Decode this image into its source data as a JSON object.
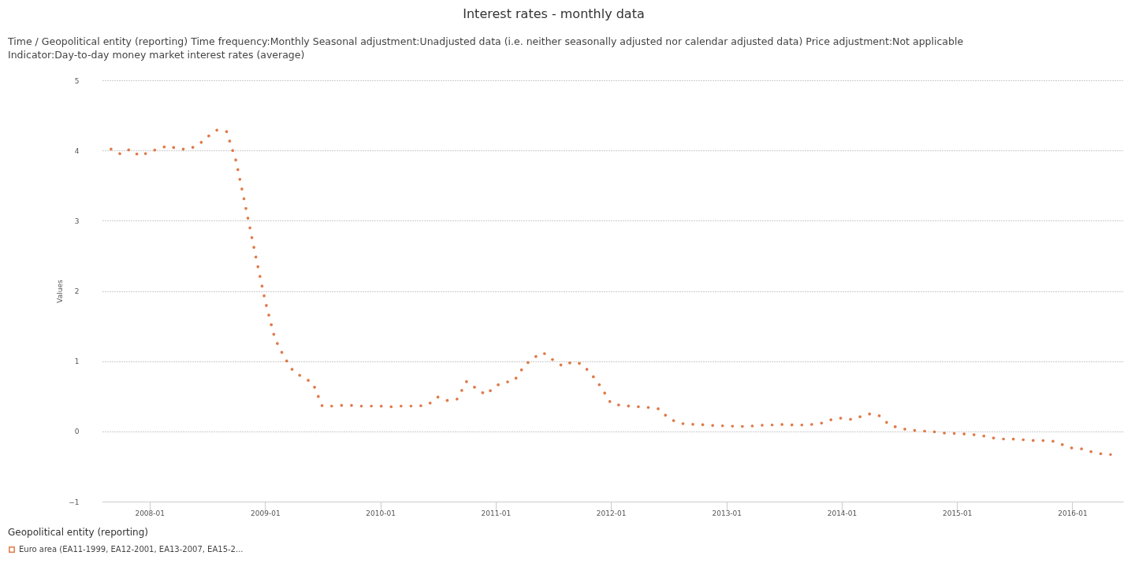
{
  "chart_data": {
    "type": "line",
    "title": "Interest rates - monthly data",
    "subtitle": "Time / Geopolitical entity (reporting)  Time frequency:Monthly  Seasonal adjustment:Unadjusted data (i.e. neither seasonally adjusted nor calendar adjusted data)  Price adjustment:Not applicable  Indicator:Day-to-day money market interest rates (average)",
    "ylabel": "Values",
    "legend_title": "Geopolitical entity (reporting)",
    "x": [
      "2007-09",
      "2007-10",
      "2007-11",
      "2007-12",
      "2008-01",
      "2008-02",
      "2008-03",
      "2008-04",
      "2008-05",
      "2008-06",
      "2008-07",
      "2008-08",
      "2008-09",
      "2008-10",
      "2008-11",
      "2008-12",
      "2009-01",
      "2009-02",
      "2009-03",
      "2009-04",
      "2009-05",
      "2009-06",
      "2009-07",
      "2009-08",
      "2009-09",
      "2009-10",
      "2009-11",
      "2009-12",
      "2010-01",
      "2010-02",
      "2010-03",
      "2010-04",
      "2010-05",
      "2010-06",
      "2010-07",
      "2010-08",
      "2010-09",
      "2010-10",
      "2010-11",
      "2010-12",
      "2011-01",
      "2011-02",
      "2011-03",
      "2011-04",
      "2011-05",
      "2011-06",
      "2011-07",
      "2011-08",
      "2011-09",
      "2011-10",
      "2011-11",
      "2011-12",
      "2012-01",
      "2012-02",
      "2012-03",
      "2012-04",
      "2012-05",
      "2012-06",
      "2012-07",
      "2012-08",
      "2012-09",
      "2012-10",
      "2012-11",
      "2012-12",
      "2013-01",
      "2013-02",
      "2013-03",
      "2013-04",
      "2013-05",
      "2013-06",
      "2013-07",
      "2013-08",
      "2013-09",
      "2013-10",
      "2013-11",
      "2013-12",
      "2014-01",
      "2014-02",
      "2014-03",
      "2014-04",
      "2014-05",
      "2014-06",
      "2014-07",
      "2014-08",
      "2014-09",
      "2014-10",
      "2014-11",
      "2014-12",
      "2015-01",
      "2015-02",
      "2015-03",
      "2015-04",
      "2015-05",
      "2015-06",
      "2015-07",
      "2015-08",
      "2015-09",
      "2015-10",
      "2015-11",
      "2015-12",
      "2016-01",
      "2016-02",
      "2016-03",
      "2016-04",
      "2016-05"
    ],
    "series": [
      {
        "name": "Euro area (EA11-1999, EA12-2001, EA13-2007, EA15-2...",
        "color": "#e07a4a",
        "values": [
          4.02,
          3.95,
          4.02,
          3.92,
          3.98,
          4.03,
          4.07,
          4.02,
          4.02,
          4.07,
          4.19,
          4.29,
          4.27,
          3.85,
          3.18,
          2.52,
          1.86,
          1.32,
          1.07,
          0.85,
          0.77,
          0.69,
          0.36,
          0.36,
          0.37,
          0.37,
          0.36,
          0.36,
          0.36,
          0.35,
          0.36,
          0.36,
          0.36,
          0.38,
          0.49,
          0.44,
          0.46,
          0.71,
          0.61,
          0.52,
          0.65,
          0.7,
          0.72,
          0.93,
          1.05,
          1.12,
          1.02,
          0.93,
          0.99,
          0.96,
          0.81,
          0.63,
          0.4,
          0.37,
          0.36,
          0.35,
          0.34,
          0.32,
          0.19,
          0.12,
          0.1,
          0.1,
          0.09,
          0.08,
          0.08,
          0.07,
          0.07,
          0.08,
          0.09,
          0.09,
          0.1,
          0.09,
          0.09,
          0.1,
          0.12,
          0.17,
          0.19,
          0.17,
          0.21,
          0.25,
          0.22,
          0.09,
          0.05,
          0.02,
          0.01,
          0.0,
          -0.01,
          -0.03,
          -0.03,
          -0.04,
          -0.05,
          -0.07,
          -0.1,
          -0.11,
          -0.11,
          -0.12,
          -0.13,
          -0.13,
          -0.14,
          -0.19,
          -0.24,
          -0.25,
          -0.29,
          -0.32,
          -0.33
        ]
      }
    ],
    "xlim": [
      "2007-08-05",
      "2016-06-10"
    ],
    "xticks": [
      "2008-01",
      "2009-01",
      "2010-01",
      "2011-01",
      "2012-01",
      "2013-01",
      "2014-01",
      "2015-01",
      "2016-01"
    ],
    "ylim": [
      -1,
      5
    ],
    "yticks": [
      -1,
      0,
      1,
      2,
      3,
      4,
      5
    ],
    "grid": "y",
    "legend": "bottom",
    "line_style": "dotted"
  }
}
